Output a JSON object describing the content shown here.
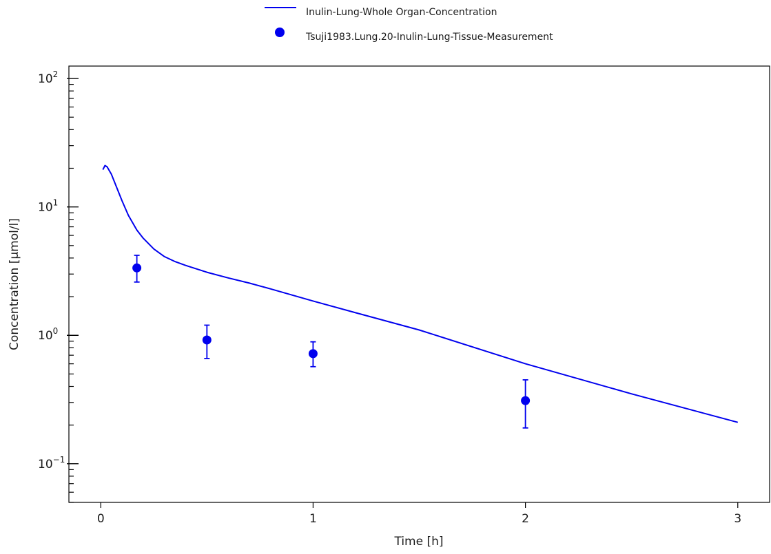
{
  "chart_data": {
    "type": "line",
    "xlabel": "Time [h]",
    "ylabel": "Concentration [µmol/l]",
    "xlim": [
      -0.15,
      3.15
    ],
    "ylim": [
      0.05,
      125
    ],
    "yscale": "log",
    "x_ticks": [
      {
        "value": 0,
        "label": "0"
      },
      {
        "value": 1,
        "label": "1"
      },
      {
        "value": 2,
        "label": "2"
      },
      {
        "value": 3,
        "label": "3"
      }
    ],
    "y_ticks": [
      {
        "value": 0.1,
        "base": "10",
        "exp": "−1"
      },
      {
        "value": 1,
        "base": "10",
        "exp": "0"
      },
      {
        "value": 10,
        "base": "10",
        "exp": "1"
      },
      {
        "value": 100,
        "base": "10",
        "exp": "2"
      }
    ],
    "legend": {
      "position": "top-center"
    },
    "series": [
      {
        "name": "Inulin-Lung-Whole Organ-Concentration",
        "kind": "line",
        "color": "#0000ee",
        "x": [
          0.01,
          0.02,
          0.03,
          0.05,
          0.08,
          0.1,
          0.13,
          0.17,
          0.2,
          0.25,
          0.3,
          0.35,
          0.4,
          0.5,
          0.6,
          0.7,
          0.8,
          1.0,
          1.2,
          1.5,
          2.0,
          2.5,
          3.0
        ],
        "y": [
          19.5,
          21.0,
          20.5,
          18.0,
          13.5,
          11.2,
          8.6,
          6.6,
          5.7,
          4.7,
          4.1,
          3.75,
          3.5,
          3.1,
          2.8,
          2.55,
          2.3,
          1.85,
          1.5,
          1.1,
          0.6,
          0.35,
          0.21
        ]
      },
      {
        "name": "Tsuji1983.Lung.20-Inulin-Lung-Tissue-Measurement",
        "kind": "scatter",
        "color": "#0000ee",
        "points": [
          {
            "x": 0.17,
            "y": 3.35,
            "lo": 2.6,
            "hi": 4.2
          },
          {
            "x": 0.5,
            "y": 0.92,
            "lo": 0.66,
            "hi": 1.2
          },
          {
            "x": 1.0,
            "y": 0.72,
            "lo": 0.57,
            "hi": 0.89
          },
          {
            "x": 2.0,
            "y": 0.31,
            "lo": 0.19,
            "hi": 0.45
          }
        ]
      }
    ]
  }
}
